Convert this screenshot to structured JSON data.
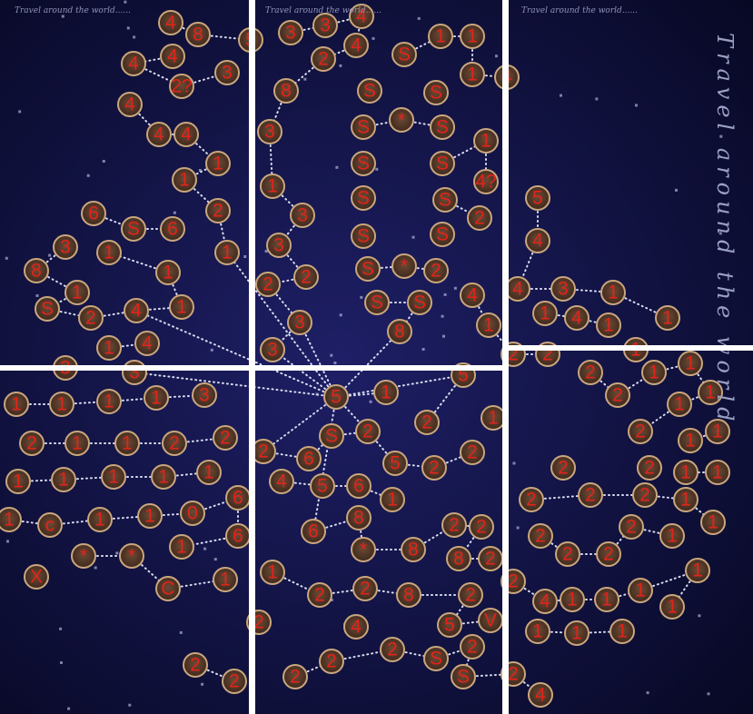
{
  "headers": [
    "Travel around the world......",
    "Travel around the world......",
    "Travel around the world......"
  ],
  "side_title": "Travel around the world",
  "node_groups": [
    [
      "4",
      "8",
      "5",
      "4",
      "4",
      "2?",
      "3",
      "4",
      "4",
      "4",
      "1",
      "1",
      "2",
      "1",
      "6",
      "S",
      "6",
      "3",
      "8",
      "1",
      "S",
      "2",
      "4",
      "1",
      "1",
      "1",
      "1",
      "4",
      "3",
      "3"
    ],
    [
      "3",
      "3",
      "4",
      "4",
      "2",
      "8",
      "3",
      "1",
      "3",
      "3",
      "2",
      "2",
      "3",
      "3",
      "S",
      "1",
      "1",
      "1",
      "4",
      "S",
      "S",
      "S",
      "*",
      "S",
      "S",
      "S",
      "1",
      "4?",
      "S",
      "S",
      "2",
      "S",
      "S",
      "S",
      "*",
      "2",
      "S",
      "S",
      "8"
    ],
    [
      "5",
      "4",
      "4",
      "3",
      "1",
      "1",
      "1",
      "4",
      "1",
      "4",
      "1",
      "2",
      "2",
      "1"
    ],
    [
      "1",
      "1",
      "1",
      "1",
      "3",
      "2",
      "1",
      "1",
      "2",
      "2",
      "1",
      "1",
      "1",
      "1",
      "1",
      "1",
      "c",
      "1",
      "1",
      "0",
      "6",
      "6",
      "1",
      "*",
      "*",
      "C",
      "1",
      "X",
      "2",
      "2",
      "2"
    ],
    [
      "5",
      "1",
      "5",
      "2",
      "1",
      "2",
      "6",
      "S",
      "2",
      "5",
      "2",
      "2",
      "4",
      "5",
      "6",
      "1",
      "6",
      "8",
      "*",
      "8",
      "2",
      "2",
      "8",
      "2",
      "1",
      "2",
      "2",
      "8",
      "2",
      "5",
      "V",
      "4",
      "2",
      "2",
      "2",
      "S",
      "2",
      "S",
      "2",
      "4"
    ],
    [
      "2",
      "2",
      "1",
      "1",
      "1",
      "1",
      "2",
      "1",
      "1",
      "2",
      "2",
      "1",
      "1",
      "2",
      "2",
      "2",
      "1",
      "1",
      "2",
      "2",
      "2",
      "2",
      "1",
      "2",
      "4",
      "1",
      "1",
      "1",
      "1",
      "1",
      "1",
      "1",
      "1"
    ]
  ]
}
